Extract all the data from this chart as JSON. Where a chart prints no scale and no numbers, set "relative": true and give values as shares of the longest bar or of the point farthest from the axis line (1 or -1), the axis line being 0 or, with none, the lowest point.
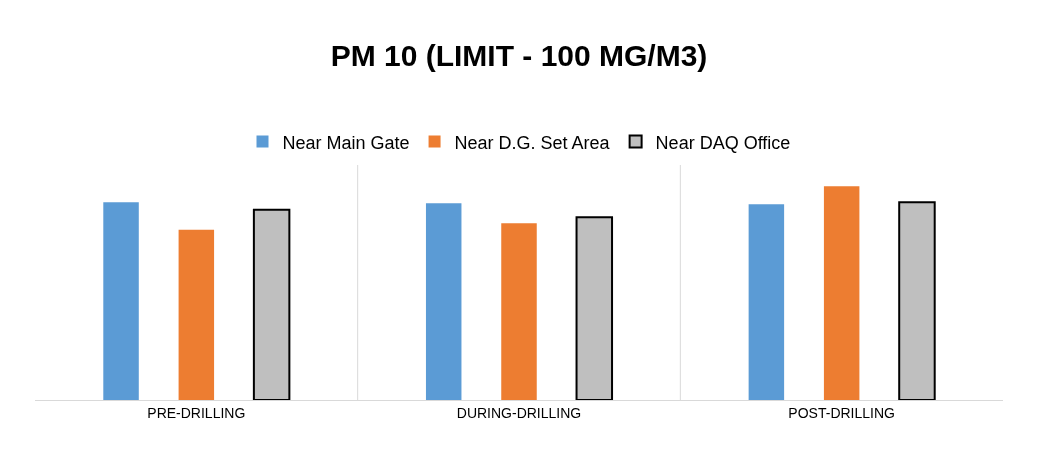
{
  "chart_data": {
    "type": "bar",
    "title": "PM 10 (LIMIT - 100 MG/M3)",
    "relative": true,
    "categories": [
      "PRE-DRILLING",
      "DURING-DRILLING",
      "POST-DRILLING"
    ],
    "series": [
      {
        "name": "Near Main Gate",
        "color": "#5b9bd5",
        "values": [
          0.926,
          0.921,
          0.916
        ]
      },
      {
        "name": "Near D.G. Set Area",
        "color": "#ed7d31",
        "values": [
          0.797,
          0.827,
          1
        ]
      },
      {
        "name": "Near DAQ Office",
        "color": "#bfbfbf",
        "values": [
          0.891,
          0.856,
          0.926
        ]
      }
    ],
    "legend": "top"
  }
}
